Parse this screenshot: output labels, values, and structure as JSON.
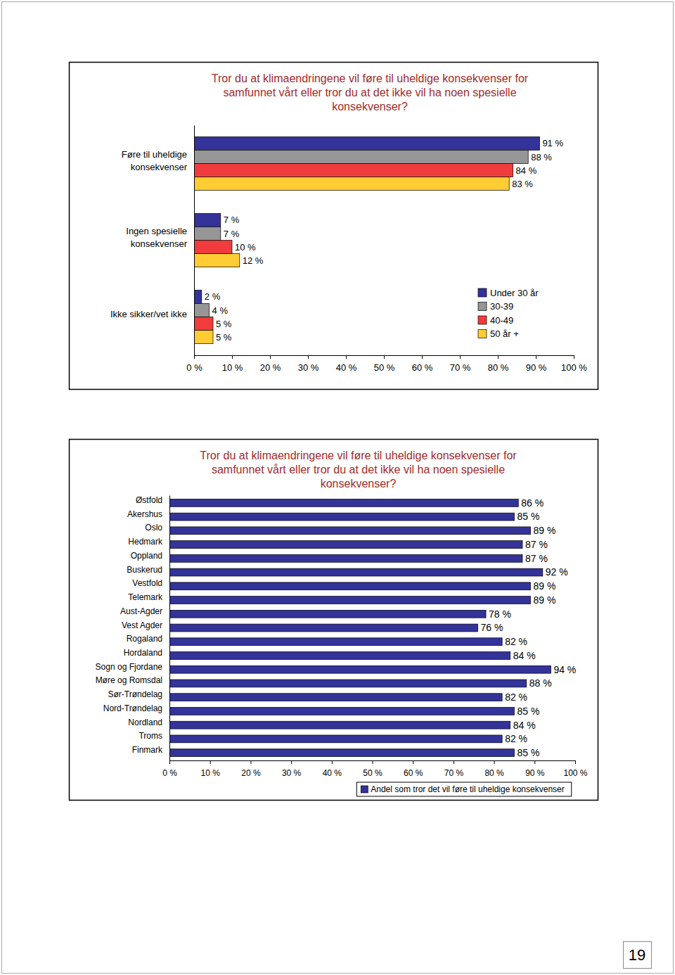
{
  "chart_data": [
    {
      "type": "bar",
      "title": "Tror du at klimaendringene vil føre til uheldige konsekvenser for samfunnet vårt eller tror du at det ikke vil ha noen spesielle konsekvenser?",
      "orientation": "horizontal",
      "categories": [
        "Føre til uheldige konsekvenser",
        "Ingen spesielle konsekvenser",
        "Ikke sikker/vet ikke"
      ],
      "series": [
        {
          "name": "Under 30 år",
          "color": "#333399",
          "values": [
            91,
            7,
            2
          ],
          "value_labels": [
            "91 %",
            "7 %",
            "2 %"
          ]
        },
        {
          "name": "30-39",
          "color": "#969696",
          "values": [
            88,
            7,
            4
          ],
          "value_labels": [
            "88 %",
            "7 %",
            "4 %"
          ]
        },
        {
          "name": "40-49",
          "color": "#f03c3c",
          "values": [
            84,
            10,
            5
          ],
          "value_labels": [
            "84 %",
            "10 %",
            "5 %"
          ]
        },
        {
          "name": "50 år +",
          "color": "#ffcc33",
          "values": [
            83,
            12,
            5
          ],
          "value_labels": [
            "83 %",
            "12 %",
            "5 %"
          ]
        }
      ],
      "xlim": [
        0,
        100
      ],
      "xticks": [
        {
          "value": 0,
          "label": "0 %"
        },
        {
          "value": 10,
          "label": "10 %"
        },
        {
          "value": 20,
          "label": "20 %"
        },
        {
          "value": 30,
          "label": "30 %"
        },
        {
          "value": 40,
          "label": "40 %"
        },
        {
          "value": 50,
          "label": "50 %"
        },
        {
          "value": 60,
          "label": "60 %"
        },
        {
          "value": 70,
          "label": "70 %"
        },
        {
          "value": 80,
          "label": "80 %"
        },
        {
          "value": 90,
          "label": "90 %"
        },
        {
          "value": 100,
          "label": "100 %"
        }
      ],
      "data_labels": true,
      "legend": "lower right",
      "grid": false
    },
    {
      "type": "bar",
      "title": "Tror du at klimaendringene vil føre til uheldige konsekvenser for samfunnet vårt eller tror du at det ikke vil ha noen spesielle konsekvenser?",
      "orientation": "horizontal",
      "categories": [
        "Østfold",
        "Akershus",
        "Oslo",
        "Hedmark",
        "Oppland",
        "Buskerud",
        "Vestfold",
        "Telemark",
        "Aust-Agder",
        "Vest Agder",
        "Rogaland",
        "Hordaland",
        "Sogn og Fjordane",
        "Møre og Romsdal",
        "Sør-Trøndelag",
        "Nord-Trøndelag",
        "Nordland",
        "Troms",
        "Finmark"
      ],
      "series": [
        {
          "name": "Andel som tror det vil føre til uheldige konsekvenser",
          "color": "#333399",
          "values": [
            86,
            85,
            89,
            87,
            87,
            92,
            89,
            89,
            78,
            76,
            82,
            84,
            94,
            88,
            82,
            85,
            84,
            82,
            85
          ],
          "value_labels": [
            "86 %",
            "85 %",
            "89 %",
            "87 %",
            "87 %",
            "92 %",
            "89 %",
            "89 %",
            "78 %",
            "76 %",
            "82 %",
            "84 %",
            "94 %",
            "88 %",
            "82 %",
            "85 %",
            "84 %",
            "82 %",
            "85 %"
          ]
        }
      ],
      "xlim": [
        0,
        100
      ],
      "xticks": [
        {
          "value": 0,
          "label": "0 %"
        },
        {
          "value": 10,
          "label": "10 %"
        },
        {
          "value": 20,
          "label": "20 %"
        },
        {
          "value": 30,
          "label": "30 %"
        },
        {
          "value": 40,
          "label": "40 %"
        },
        {
          "value": 50,
          "label": "50 %"
        },
        {
          "value": 60,
          "label": "60 %"
        },
        {
          "value": 70,
          "label": "70 %"
        },
        {
          "value": 80,
          "label": "80 %"
        },
        {
          "value": 90,
          "label": "90 %"
        },
        {
          "value": 100,
          "label": "100 %"
        }
      ],
      "data_labels": true,
      "legend": "bottom",
      "grid": false
    }
  ],
  "page_number": "19"
}
